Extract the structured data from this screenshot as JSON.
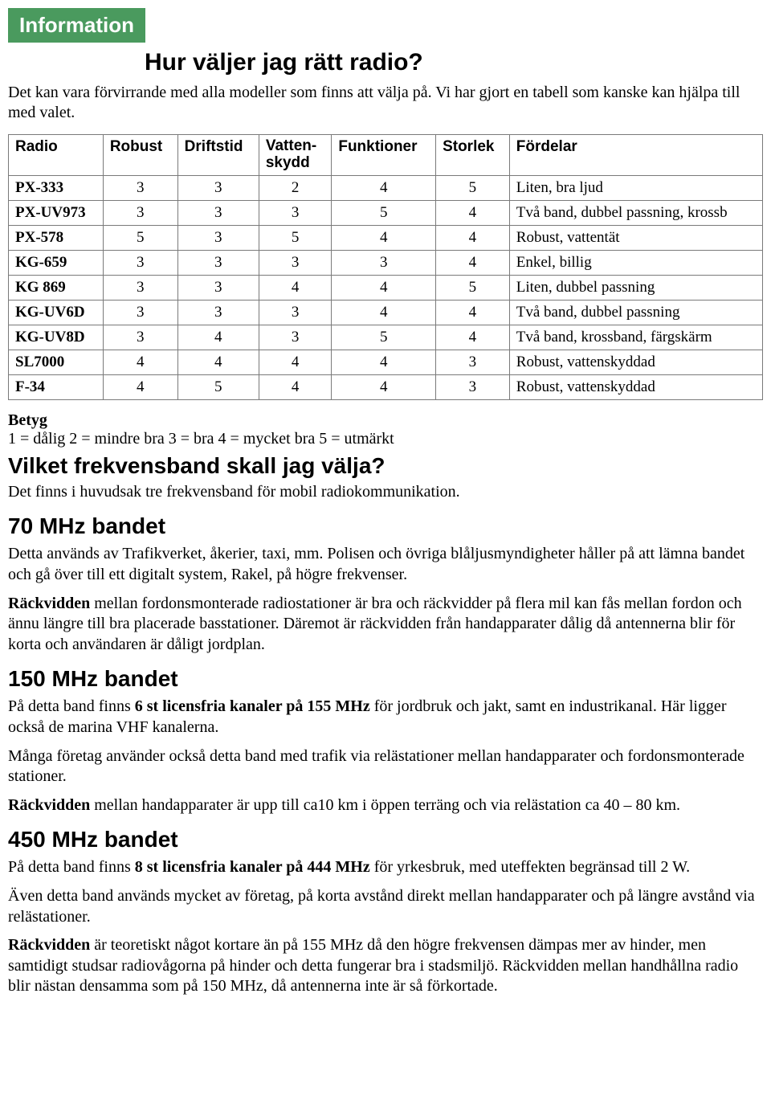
{
  "badge": "Information",
  "title": "Hur väljer jag rätt radio?",
  "intro": "Det kan vara förvirrande med alla modeller som finns att välja på. Vi har gjort en tabell som kanske kan hjälpa till med valet.",
  "table": {
    "columns": [
      "Radio",
      "Robust",
      "Driftstid",
      "Vatten-\nskydd",
      "Funktioner",
      "Storlek",
      "Fördelar"
    ],
    "rows": [
      {
        "model": "PX-333",
        "vals": [
          "3",
          "3",
          "2",
          "4",
          "5"
        ],
        "note": "Liten, bra ljud"
      },
      {
        "model": "PX-UV973",
        "vals": [
          "3",
          "3",
          "3",
          "5",
          "4"
        ],
        "note": "Två band, dubbel passning, krossb"
      },
      {
        "model": "PX-578",
        "vals": [
          "5",
          "3",
          "5",
          "4",
          "4"
        ],
        "note": "Robust, vattentät"
      },
      {
        "model": "KG-659",
        "vals": [
          "3",
          "3",
          "3",
          "3",
          "4"
        ],
        "note": "Enkel, billig"
      },
      {
        "model": "KG 869",
        "vals": [
          "3",
          "3",
          "4",
          "4",
          "5"
        ],
        "note": "Liten, dubbel passning"
      },
      {
        "model": "KG-UV6D",
        "vals": [
          "3",
          "3",
          "3",
          "4",
          "4"
        ],
        "note": "Två band, dubbel passning"
      },
      {
        "model": "KG-UV8D",
        "vals": [
          "3",
          "4",
          "3",
          "5",
          "4"
        ],
        "note": "Två band, krossband, färgskärm"
      },
      {
        "model": "SL7000",
        "vals": [
          "4",
          "4",
          "4",
          "4",
          "3"
        ],
        "note": "Robust, vattenskyddad"
      },
      {
        "model": "F-34",
        "vals": [
          "4",
          "5",
          "4",
          "4",
          "3"
        ],
        "note": "Robust, vattenskyddad"
      }
    ]
  },
  "betyg": {
    "label": "Betyg",
    "scale": "1 = dålig  2 = mindre bra  3 = bra  4 = mycket bra  5 = utmärkt"
  },
  "freq": {
    "title": "Vilket frekvensband skall jag välja?",
    "intro": "Det finns i huvudsak tre frekvensband för mobil radiokommunikation."
  },
  "band70": {
    "title": "70 MHz bandet",
    "p1": "Detta används av Trafikverket, åkerier, taxi, mm. Polisen och övriga blåljusmyndigheter håller på att lämna bandet och gå över till ett digitalt system, Rakel, på högre frekvenser.",
    "p2_lead": "Räckvidden",
    "p2_rest": " mellan fordonsmonterade radiostationer är bra och räckvidder på flera mil kan fås mellan fordon och ännu längre till bra placerade basstationer. Däremot är räckvidden från handapparater dålig då antennerna blir för korta och användaren är dåligt jordplan."
  },
  "band150": {
    "title": "150 MHz bandet",
    "p1_a": "På detta band finns ",
    "p1_bold": "6 st licensfria kanaler på 155 MHz",
    "p1_b": " för jordbruk och jakt, samt en industrikanal. Här ligger också de marina VHF kanalerna.",
    "p2": "Många företag använder också detta band med trafik via relästationer mellan handapparater och fordonsmonterade stationer.",
    "p3_lead": "Räckvidden",
    "p3_rest": " mellan handapparater är upp till ca10 km i öppen terräng och via relästation ca 40 – 80 km."
  },
  "band450": {
    "title": "450 MHz bandet",
    "p1_a": "På detta band finns ",
    "p1_bold": "8 st licensfria kanaler på 444 MHz",
    "p1_b": " för yrkesbruk, med uteffekten begränsad till 2 W.",
    "p2": "Även detta band används mycket av företag, på korta avstånd direkt mellan handapparater och på längre avstånd via relästationer.",
    "p3_lead": "Räckvidden",
    "p3_rest": " är teoretiskt något kortare än på 155 MHz då den högre frekvensen dämpas mer av hinder, men samtidigt studsar radiovågorna på hinder och detta fungerar bra i stadsmiljö. Räckvidden mellan handhållna radio blir nästan densamma som på 150 MHz, då antennerna inte är så förkortade."
  }
}
